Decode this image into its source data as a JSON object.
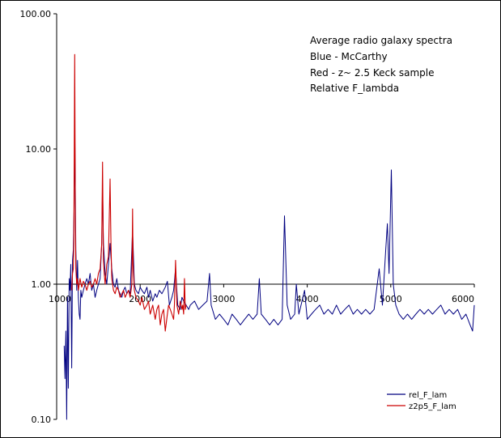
{
  "chart_data": {
    "type": "line",
    "title": "",
    "xlabel": "",
    "ylabel": "",
    "xlim": [
      1000,
      6000
    ],
    "ylim": [
      0.1,
      100
    ],
    "yscale": "log",
    "x_axis_crosses_y_at": 1.0,
    "grid": false,
    "legend_position": "bottom-right",
    "y_tick_labels": [
      "100.00",
      "10.00",
      "1.00",
      "0.10"
    ],
    "y_tick_values": [
      100,
      10,
      1,
      0.1
    ],
    "x_tick_labels": [
      "1000",
      "2000",
      "3000",
      "4000",
      "5000",
      "6000"
    ],
    "x_tick_values": [
      1000,
      2000,
      3000,
      4000,
      5000,
      6000
    ],
    "annotation_lines": [
      "Average radio galaxy spectra",
      "Blue - McCarthy",
      "Red - z~ 2.5 Keck sample",
      "Relative F_lambda"
    ],
    "series": [
      {
        "name": "rel_F_lam",
        "color": "#000080",
        "x": [
          1090,
          1100,
          1110,
          1120,
          1130,
          1140,
          1150,
          1160,
          1170,
          1180,
          1190,
          1200,
          1210,
          1216,
          1220,
          1230,
          1240,
          1250,
          1260,
          1270,
          1280,
          1290,
          1300,
          1320,
          1340,
          1360,
          1380,
          1400,
          1420,
          1440,
          1460,
          1480,
          1500,
          1520,
          1540,
          1549,
          1560,
          1580,
          1600,
          1620,
          1640,
          1660,
          1680,
          1700,
          1720,
          1740,
          1760,
          1780,
          1800,
          1820,
          1840,
          1860,
          1880,
          1909,
          1930,
          1950,
          1980,
          2000,
          2020,
          2050,
          2080,
          2100,
          2120,
          2150,
          2180,
          2200,
          2230,
          2260,
          2300,
          2326,
          2350,
          2380,
          2400,
          2423,
          2450,
          2480,
          2500,
          2520,
          2550,
          2580,
          2600,
          2650,
          2700,
          2750,
          2800,
          2830,
          2850,
          2900,
          2950,
          3000,
          3050,
          3100,
          3150,
          3200,
          3250,
          3300,
          3350,
          3400,
          3426,
          3450,
          3500,
          3550,
          3600,
          3650,
          3700,
          3728,
          3760,
          3800,
          3850,
          3869,
          3900,
          3968,
          4000,
          4050,
          4100,
          4150,
          4200,
          4250,
          4300,
          4350,
          4400,
          4450,
          4500,
          4550,
          4600,
          4650,
          4700,
          4750,
          4800,
          4861,
          4900,
          4940,
          4959,
          4980,
          5007,
          5030,
          5060,
          5100,
          5150,
          5200,
          5250,
          5300,
          5350,
          5400,
          5450,
          5500,
          5550,
          5600,
          5650,
          5700,
          5750,
          5800,
          5850,
          5900,
          5950,
          5980,
          6000
        ],
        "values": [
          0.35,
          0.2,
          0.45,
          0.1,
          0.8,
          0.17,
          1.1,
          0.9,
          1.4,
          0.24,
          1.5,
          1.8,
          4.0,
          16.0,
          8.0,
          1.8,
          0.9,
          1.5,
          0.8,
          0.6,
          0.55,
          0.9,
          0.8,
          0.9,
          1.0,
          1.1,
          1.0,
          1.2,
          0.9,
          1.0,
          0.8,
          0.9,
          1.0,
          1.1,
          2.0,
          5.5,
          2.0,
          1.2,
          1.0,
          1.4,
          2.0,
          1.3,
          1.0,
          0.95,
          1.1,
          0.9,
          0.85,
          0.8,
          0.9,
          0.95,
          0.85,
          0.9,
          0.85,
          2.5,
          1.0,
          0.9,
          0.85,
          0.95,
          0.9,
          0.85,
          0.95,
          0.8,
          0.9,
          0.75,
          0.85,
          0.8,
          0.9,
          0.85,
          0.95,
          1.05,
          0.7,
          0.8,
          0.9,
          1.3,
          0.7,
          0.65,
          0.8,
          0.75,
          0.7,
          0.65,
          0.7,
          0.75,
          0.65,
          0.7,
          0.75,
          1.2,
          0.7,
          0.55,
          0.6,
          0.55,
          0.5,
          0.6,
          0.55,
          0.5,
          0.55,
          0.6,
          0.55,
          0.6,
          1.1,
          0.6,
          0.55,
          0.5,
          0.55,
          0.5,
          0.55,
          3.2,
          0.7,
          0.55,
          0.6,
          1.0,
          0.6,
          0.9,
          0.55,
          0.6,
          0.65,
          0.7,
          0.6,
          0.65,
          0.6,
          0.7,
          0.6,
          0.65,
          0.7,
          0.6,
          0.65,
          0.6,
          0.65,
          0.6,
          0.65,
          1.3,
          0.7,
          1.8,
          2.8,
          1.2,
          7.0,
          1.0,
          0.7,
          0.6,
          0.55,
          0.6,
          0.55,
          0.6,
          0.65,
          0.6,
          0.65,
          0.6,
          0.65,
          0.7,
          0.6,
          0.65,
          0.6,
          0.65,
          0.55,
          0.6,
          0.5,
          0.45,
          0.7
        ]
      },
      {
        "name": "z2p5_F_lam",
        "color": "#cc0000",
        "x": [
          1180,
          1190,
          1200,
          1205,
          1210,
          1216,
          1220,
          1225,
          1230,
          1240,
          1250,
          1260,
          1270,
          1280,
          1300,
          1320,
          1340,
          1360,
          1380,
          1400,
          1420,
          1440,
          1460,
          1480,
          1500,
          1520,
          1540,
          1549,
          1555,
          1560,
          1570,
          1580,
          1600,
          1620,
          1640,
          1650,
          1660,
          1680,
          1700,
          1720,
          1740,
          1760,
          1780,
          1800,
          1820,
          1840,
          1860,
          1880,
          1900,
          1909,
          1915,
          1930,
          1950,
          1980,
          2000,
          2020,
          2050,
          2080,
          2100,
          2120,
          2150,
          2180,
          2200,
          2220,
          2240,
          2260,
          2280,
          2300,
          2326,
          2340,
          2360,
          2380,
          2400,
          2410,
          2423,
          2440,
          2460,
          2480,
          2500,
          2510,
          2520,
          2530,
          2540,
          2550
        ],
        "values": [
          0.9,
          1.2,
          1.3,
          2.0,
          8.0,
          50.0,
          12.0,
          2.5,
          1.3,
          1.0,
          1.1,
          0.9,
          1.0,
          1.1,
          0.95,
          1.05,
          1.0,
          0.9,
          1.0,
          1.05,
          0.95,
          1.0,
          1.1,
          1.0,
          1.2,
          1.3,
          2.0,
          8.0,
          3.0,
          1.5,
          1.2,
          1.0,
          1.4,
          1.6,
          6.0,
          2.0,
          1.1,
          0.9,
          0.85,
          0.95,
          0.9,
          0.8,
          0.85,
          0.9,
          0.8,
          0.85,
          0.9,
          0.8,
          1.0,
          3.6,
          1.4,
          0.9,
          0.8,
          0.75,
          0.7,
          0.8,
          0.65,
          0.7,
          0.75,
          0.6,
          0.7,
          0.55,
          0.65,
          0.7,
          0.5,
          0.6,
          0.65,
          0.45,
          0.6,
          0.7,
          0.65,
          0.6,
          0.55,
          0.7,
          1.5,
          0.7,
          0.6,
          0.75,
          0.65,
          0.7,
          0.6,
          1.1,
          0.65,
          0.7
        ]
      }
    ]
  }
}
